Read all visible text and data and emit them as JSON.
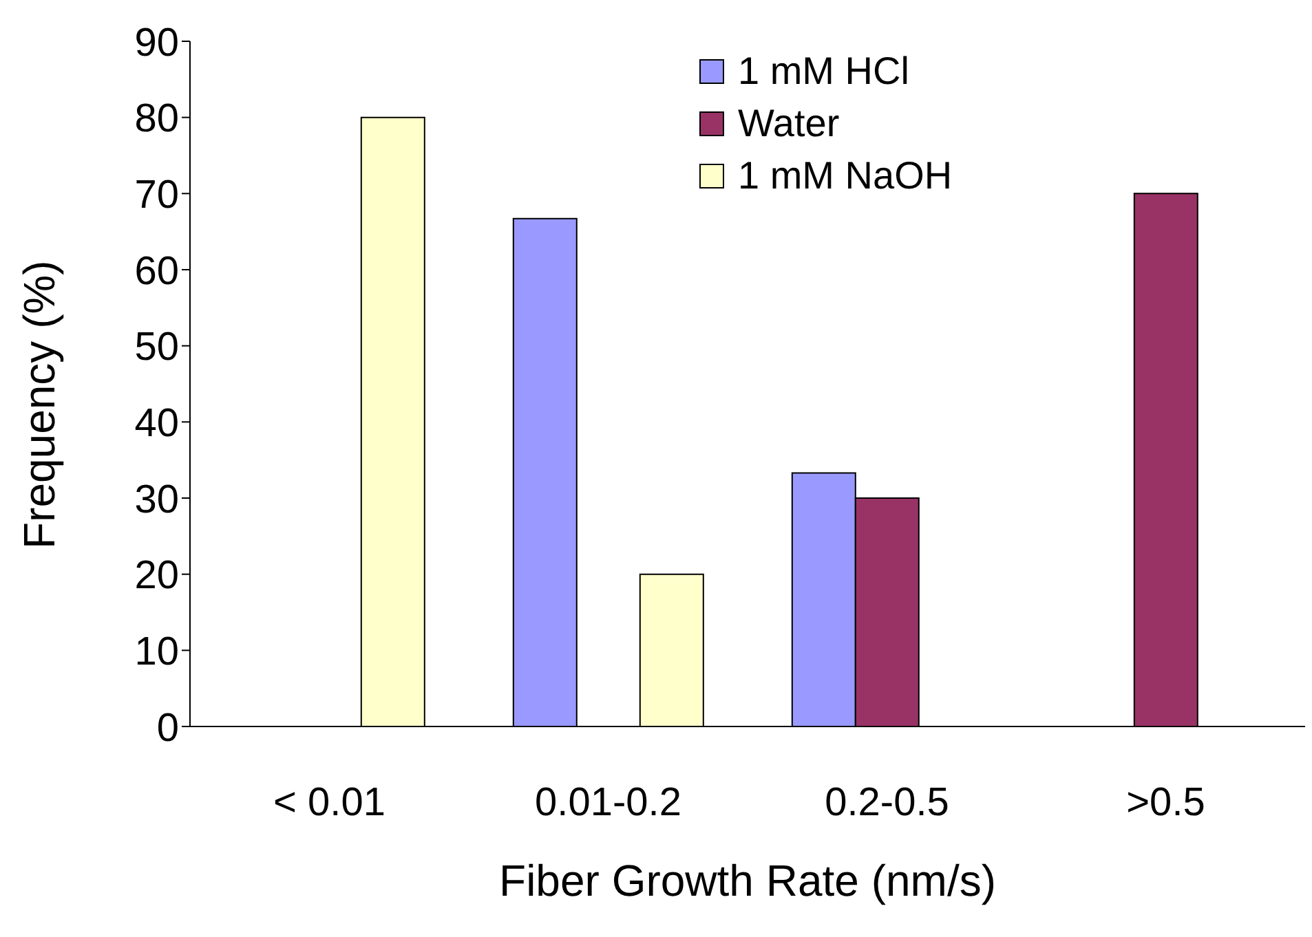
{
  "chart_data": {
    "type": "bar",
    "xlabel": "Fiber Growth Rate (nm/s)",
    "ylabel": "Frequency (%)",
    "categories": [
      "< 0.01",
      "0.01-0.2",
      "0.2-0.5",
      ">0.5"
    ],
    "series": [
      {
        "name": "1 mM HCl",
        "color": "#9999ff",
        "values": [
          0,
          66.7,
          33.3,
          0
        ]
      },
      {
        "name": "Water",
        "color": "#993366",
        "values": [
          0,
          0,
          30,
          70
        ]
      },
      {
        "name": "1 mM NaOH",
        "color": "#ffffcc",
        "values": [
          80,
          20,
          0,
          0
        ]
      }
    ],
    "ylim": [
      0,
      90
    ],
    "yticks": [
      0,
      10,
      20,
      30,
      40,
      50,
      60,
      70,
      80,
      90
    ],
    "grid": false,
    "legend": "top right"
  }
}
